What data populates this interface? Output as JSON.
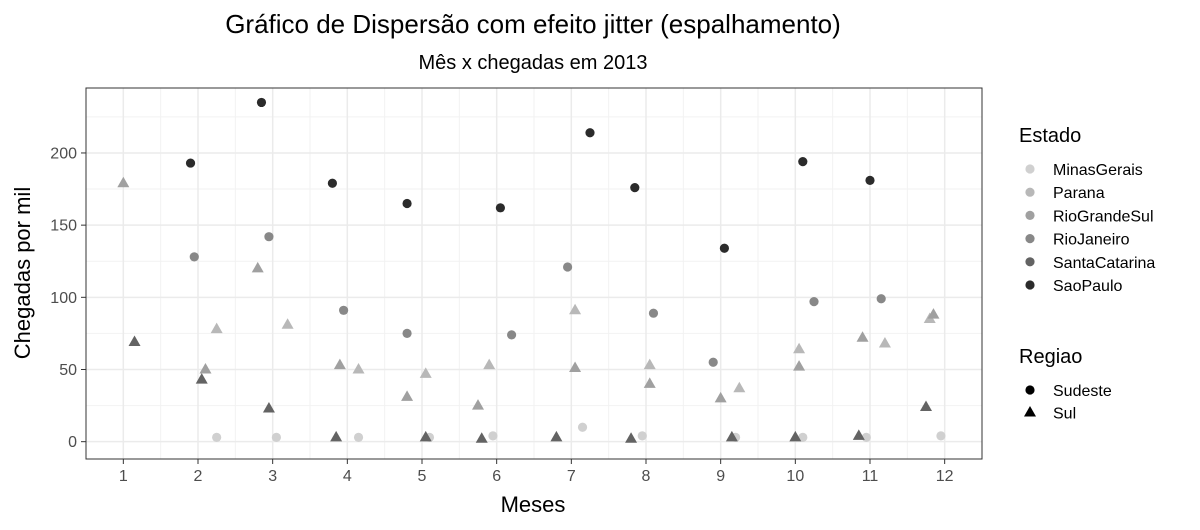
{
  "chart_data": {
    "type": "scatter",
    "title": "Gráfico de Dispersão com efeito jitter (espalhamento)",
    "subtitle": "Mês x chegadas em 2013",
    "xlabel": "Meses",
    "ylabel": "Chegadas por mil",
    "x_ticks": [
      "1",
      "2",
      "3",
      "4",
      "5",
      "6",
      "7",
      "8",
      "9",
      "10",
      "11",
      "12"
    ],
    "y_ticks": [
      0,
      50,
      100,
      150,
      200
    ],
    "xlim": [
      0.5,
      12.5
    ],
    "ylim": [
      -12,
      245
    ],
    "grid": true,
    "legend_placement": "right",
    "color_legend": {
      "title": "Estado",
      "items": [
        {
          "name": "MinasGerais",
          "color": "#d0d0d0"
        },
        {
          "name": "Parana",
          "color": "#b8b8b8"
        },
        {
          "name": "RioGrandeSul",
          "color": "#a0a0a0"
        },
        {
          "name": "RioJaneiro",
          "color": "#888888"
        },
        {
          "name": "SantaCatarina",
          "color": "#636363"
        },
        {
          "name": "SaoPaulo",
          "color": "#2b2b2b"
        }
      ]
    },
    "shape_legend": {
      "title": "Regiao",
      "items": [
        {
          "name": "Sudeste",
          "shape": "circle"
        },
        {
          "name": "Sul",
          "shape": "triangle"
        }
      ]
    },
    "series": [
      {
        "name": "MinasGerais",
        "shape": "circle",
        "color": "#d0d0d0",
        "points": [
          [
            2.25,
            3
          ],
          [
            3.05,
            3
          ],
          [
            4.15,
            3
          ],
          [
            5.1,
            3
          ],
          [
            5.95,
            4
          ],
          [
            7.15,
            10
          ],
          [
            7.95,
            4
          ],
          [
            9.2,
            3
          ],
          [
            10.1,
            3
          ],
          [
            10.95,
            3
          ],
          [
            11.95,
            4
          ]
        ]
      },
      {
        "name": "Parana",
        "shape": "triangle",
        "color": "#b8b8b8",
        "points": [
          [
            2.25,
            78
          ],
          [
            3.2,
            81
          ],
          [
            4.15,
            50
          ],
          [
            5.05,
            47
          ],
          [
            5.9,
            53
          ],
          [
            7.05,
            91
          ],
          [
            8.05,
            53
          ],
          [
            9.25,
            37
          ],
          [
            10.05,
            64
          ],
          [
            11.2,
            68
          ],
          [
            11.8,
            85
          ]
        ]
      },
      {
        "name": "RioGrandeSul",
        "shape": "triangle",
        "color": "#a0a0a0",
        "points": [
          [
            1.0,
            179
          ],
          [
            2.1,
            50
          ],
          [
            2.8,
            120
          ],
          [
            3.9,
            53
          ],
          [
            4.8,
            31
          ],
          [
            5.75,
            25
          ],
          [
            7.05,
            51
          ],
          [
            8.05,
            40
          ],
          [
            9.0,
            30
          ],
          [
            10.05,
            52
          ],
          [
            10.9,
            72
          ],
          [
            11.85,
            88
          ]
        ]
      },
      {
        "name": "RioJaneiro",
        "shape": "circle",
        "color": "#888888",
        "points": [
          [
            1.95,
            128
          ],
          [
            2.95,
            142
          ],
          [
            3.95,
            91
          ],
          [
            4.8,
            75
          ],
          [
            6.2,
            74
          ],
          [
            6.95,
            121
          ],
          [
            8.1,
            89
          ],
          [
            8.9,
            55
          ],
          [
            10.25,
            97
          ],
          [
            11.15,
            99
          ]
        ]
      },
      {
        "name": "SantaCatarina",
        "shape": "triangle",
        "color": "#636363",
        "points": [
          [
            1.15,
            69
          ],
          [
            2.05,
            43
          ],
          [
            2.95,
            23
          ],
          [
            3.85,
            3
          ],
          [
            5.05,
            3
          ],
          [
            5.8,
            2
          ],
          [
            6.8,
            3
          ],
          [
            7.8,
            2
          ],
          [
            9.15,
            3
          ],
          [
            10.0,
            3
          ],
          [
            10.85,
            4
          ],
          [
            11.75,
            24
          ]
        ]
      },
      {
        "name": "SaoPaulo",
        "shape": "circle",
        "color": "#2b2b2b",
        "points": [
          [
            1.9,
            193
          ],
          [
            2.85,
            235
          ],
          [
            3.8,
            179
          ],
          [
            4.8,
            165
          ],
          [
            6.05,
            162
          ],
          [
            7.25,
            214
          ],
          [
            7.85,
            176
          ],
          [
            9.05,
            134
          ],
          [
            10.1,
            194
          ],
          [
            11.0,
            181
          ]
        ]
      }
    ]
  }
}
